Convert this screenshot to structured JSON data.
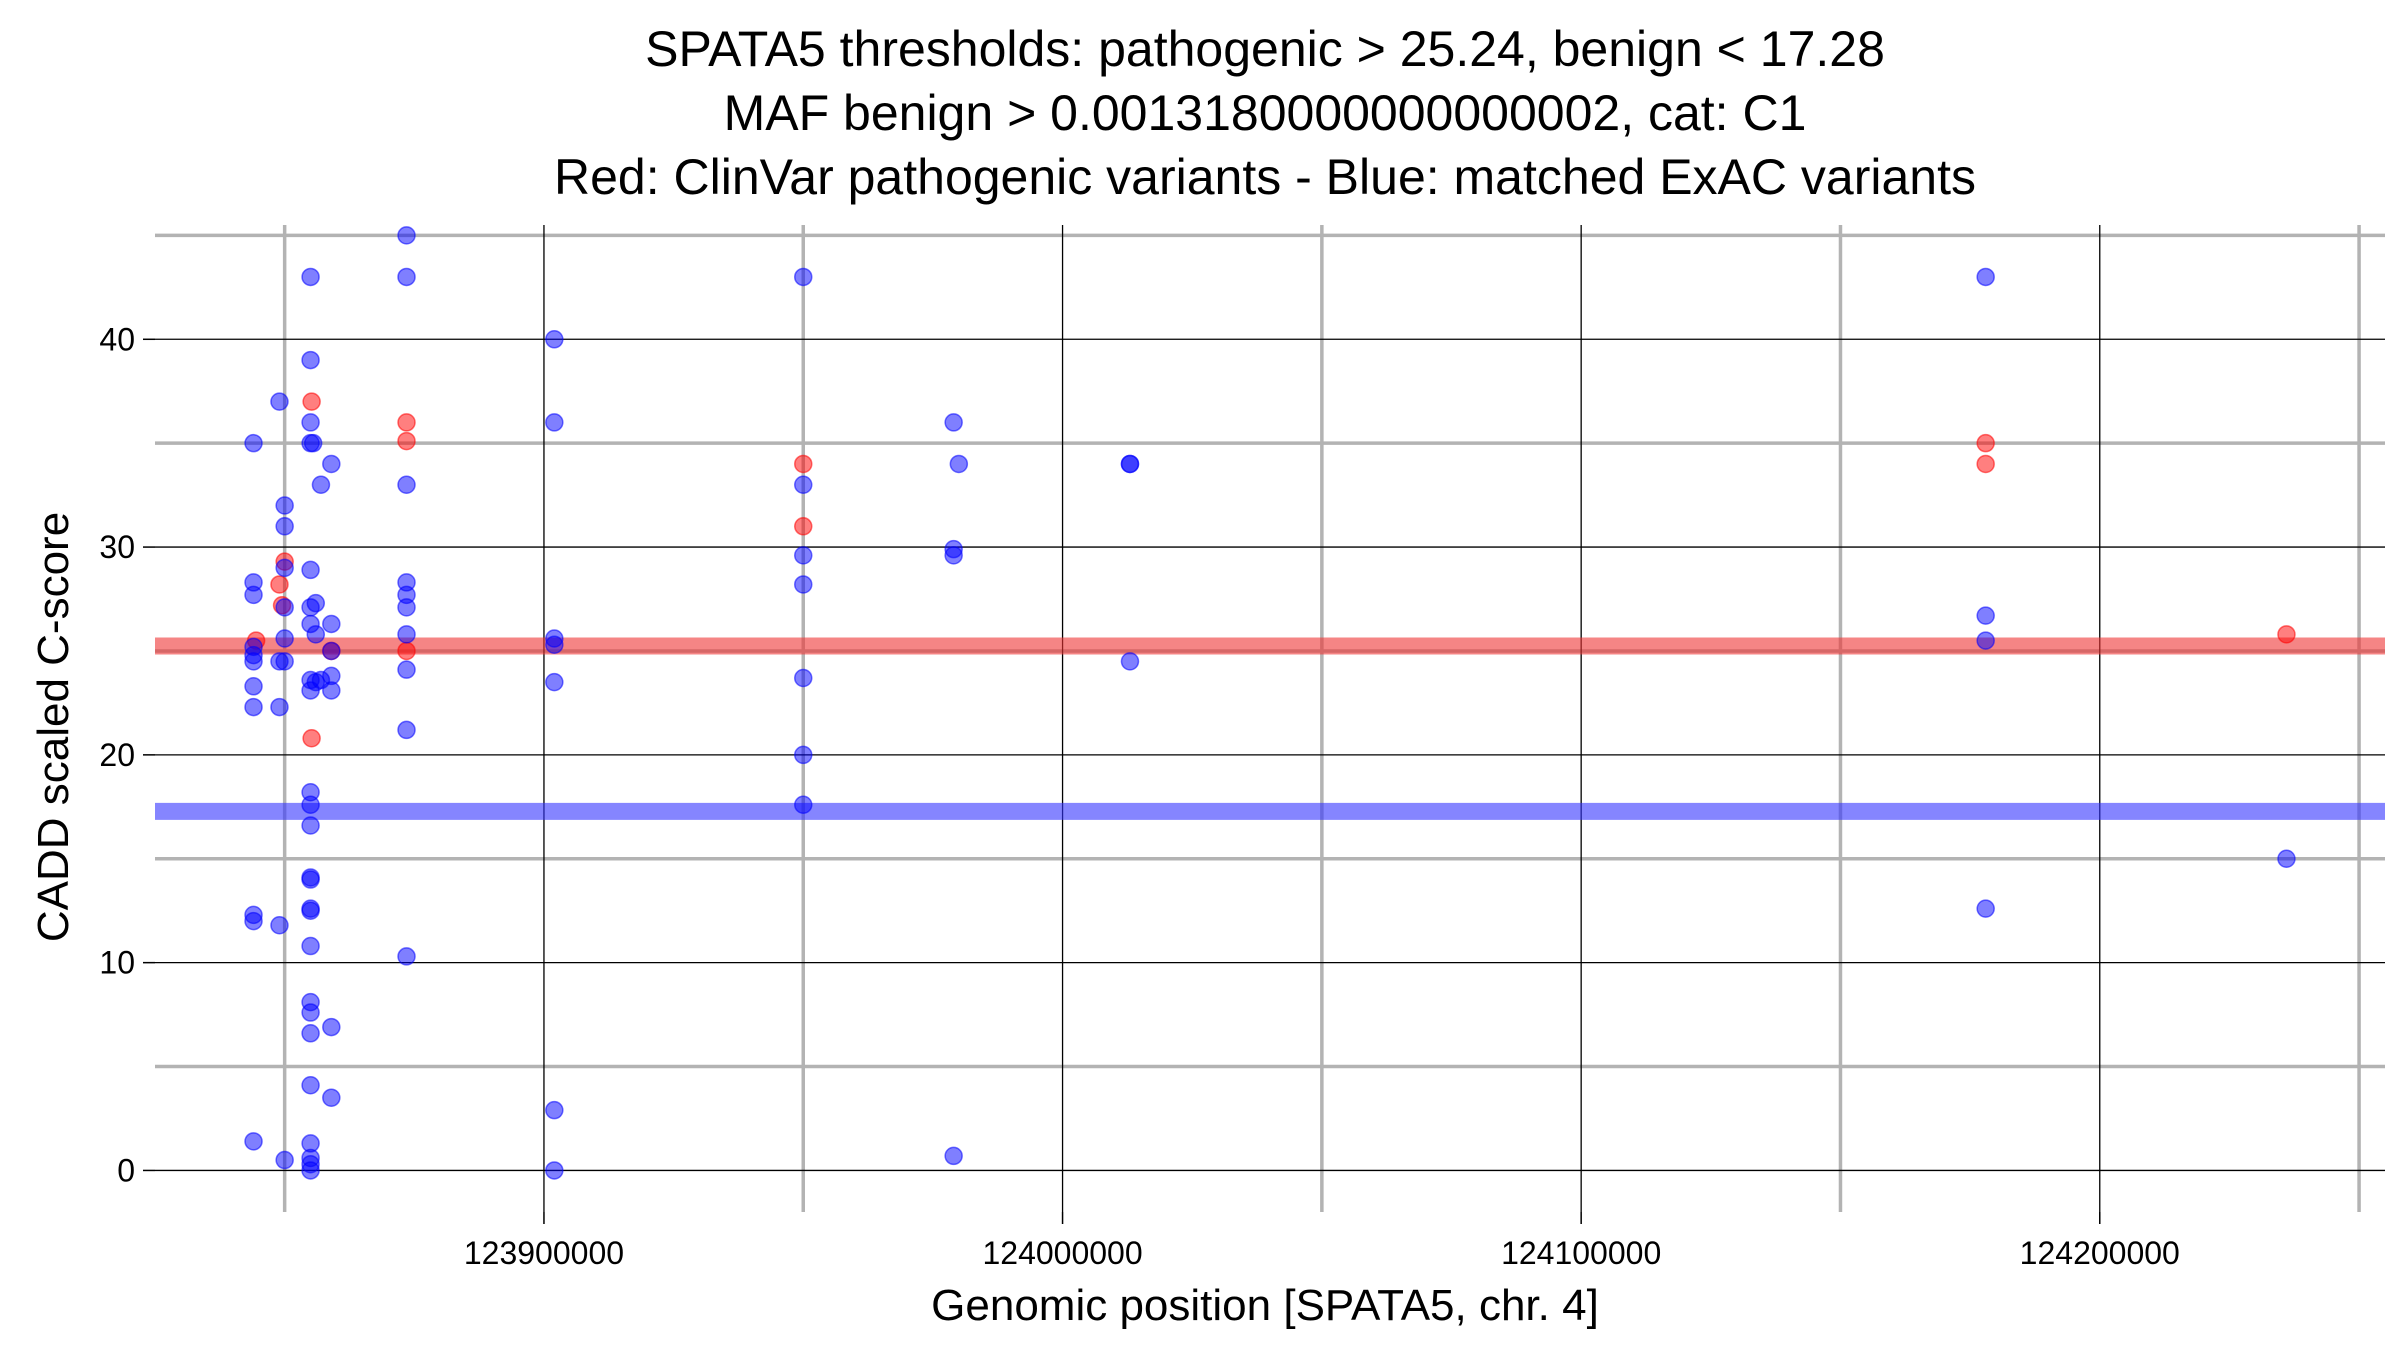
{
  "chart_data": {
    "type": "scatter",
    "title_lines": [
      "SPATA5 thresholds: pathogenic > 25.24, benign < 17.28",
      "MAF benign > 0.0013180000000000002, cat: C1",
      "Red: ClinVar pathogenic variants - Blue: matched ExAC variants"
    ],
    "xlabel": "Genomic position [SPATA5, chr. 4]",
    "ylabel": "CADD scaled C-score",
    "xlim": [
      123825000,
      124255000
    ],
    "ylim": [
      -2,
      45.5
    ],
    "x_ticks": [
      123900000,
      124000000,
      124100000,
      124200000
    ],
    "x_tick_labels": [
      "123900000",
      "124000000",
      "124100000",
      "124200000"
    ],
    "x_minor_gridlines": [
      123850000,
      123950000,
      124050000,
      124150000,
      124250000
    ],
    "y_ticks": [
      0,
      10,
      20,
      30,
      40
    ],
    "y_tick_labels": [
      "0",
      "10",
      "20",
      "30",
      "40"
    ],
    "y_minor_gridlines": [
      5,
      15,
      25,
      35,
      45
    ],
    "grid": true,
    "thresholds": [
      {
        "value": 25.24,
        "color": "#ee3333"
      },
      {
        "value": 17.28,
        "color": "#3333ff"
      }
    ],
    "series": [
      {
        "color": "#ff0000",
        "points": [
          [
            123844500,
            25.5
          ],
          [
            123849000,
            28.2
          ],
          [
            123849500,
            27.2
          ],
          [
            123850000,
            29.3
          ],
          [
            123855200,
            37.0
          ],
          [
            123855200,
            20.8
          ],
          [
            123859000,
            25.0
          ],
          [
            123873500,
            36.0
          ],
          [
            123873500,
            35.1
          ],
          [
            123873500,
            25.0
          ],
          [
            123950000,
            34.0
          ],
          [
            123950000,
            31.0
          ],
          [
            124178000,
            35.0
          ],
          [
            124178000,
            34.0
          ],
          [
            124236000,
            25.8
          ]
        ]
      },
      {
        "color": "#0000ff",
        "points": [
          [
            123844000,
            35.0
          ],
          [
            123844000,
            28.3
          ],
          [
            123844000,
            27.7
          ],
          [
            123844000,
            25.2
          ],
          [
            123844000,
            24.8
          ],
          [
            123844000,
            24.5
          ],
          [
            123844000,
            23.3
          ],
          [
            123844000,
            22.3
          ],
          [
            123844000,
            12.3
          ],
          [
            123844000,
            12.0
          ],
          [
            123844000,
            1.4
          ],
          [
            123849000,
            37.0
          ],
          [
            123849000,
            24.5
          ],
          [
            123849000,
            22.3
          ],
          [
            123849000,
            11.8
          ],
          [
            123850000,
            32.0
          ],
          [
            123850000,
            31.0
          ],
          [
            123850000,
            29.0
          ],
          [
            123850000,
            27.1
          ],
          [
            123850000,
            25.6
          ],
          [
            123850000,
            24.5
          ],
          [
            123850000,
            0.5
          ],
          [
            123855000,
            43.0
          ],
          [
            123855000,
            39.0
          ],
          [
            123855000,
            36.0
          ],
          [
            123855000,
            35.0
          ],
          [
            123855000,
            28.9
          ],
          [
            123855000,
            27.1
          ],
          [
            123855000,
            26.3
          ],
          [
            123855000,
            23.6
          ],
          [
            123855000,
            23.1
          ],
          [
            123855000,
            18.2
          ],
          [
            123855000,
            17.6
          ],
          [
            123855000,
            16.6
          ],
          [
            123855000,
            14.1
          ],
          [
            123855000,
            14.0
          ],
          [
            123855000,
            12.6
          ],
          [
            123855000,
            12.5
          ],
          [
            123855000,
            10.8
          ],
          [
            123855000,
            8.1
          ],
          [
            123855000,
            7.6
          ],
          [
            123855000,
            6.6
          ],
          [
            123855000,
            4.1
          ],
          [
            123855000,
            1.3
          ],
          [
            123855000,
            0.6
          ],
          [
            123855000,
            0.3
          ],
          [
            123855000,
            0.0
          ],
          [
            123855500,
            35.0
          ],
          [
            123856000,
            27.3
          ],
          [
            123856000,
            25.8
          ],
          [
            123856000,
            23.5
          ],
          [
            123857000,
            33.0
          ],
          [
            123857000,
            23.6
          ],
          [
            123859000,
            34.0
          ],
          [
            123859000,
            26.3
          ],
          [
            123859000,
            25.0
          ],
          [
            123859000,
            23.8
          ],
          [
            123859000,
            23.1
          ],
          [
            123859000,
            6.9
          ],
          [
            123859000,
            3.5
          ],
          [
            123873500,
            45.0
          ],
          [
            123873500,
            43.0
          ],
          [
            123873500,
            33.0
          ],
          [
            123873500,
            28.3
          ],
          [
            123873500,
            27.7
          ],
          [
            123873500,
            27.1
          ],
          [
            123873500,
            25.8
          ],
          [
            123873500,
            24.1
          ],
          [
            123873500,
            21.2
          ],
          [
            123873500,
            10.3
          ],
          [
            123902000,
            40.0
          ],
          [
            123902000,
            36.0
          ],
          [
            123902000,
            25.6
          ],
          [
            123902000,
            25.3
          ],
          [
            123902000,
            23.5
          ],
          [
            123902000,
            2.9
          ],
          [
            123902000,
            0.0
          ],
          [
            123950000,
            43.0
          ],
          [
            123950000,
            33.0
          ],
          [
            123950000,
            29.6
          ],
          [
            123950000,
            28.2
          ],
          [
            123950000,
            23.7
          ],
          [
            123950000,
            20.0
          ],
          [
            123950000,
            17.6
          ],
          [
            123979000,
            36.0
          ],
          [
            123979000,
            29.9
          ],
          [
            123979000,
            29.6
          ],
          [
            123979000,
            0.7
          ],
          [
            123980000,
            34.0
          ],
          [
            124013000,
            34.0
          ],
          [
            124013000,
            34.0
          ],
          [
            124013000,
            24.5
          ],
          [
            124178000,
            43.0
          ],
          [
            124178000,
            26.7
          ],
          [
            124178000,
            25.5
          ],
          [
            124178000,
            12.6
          ],
          [
            124236000,
            15.0
          ]
        ]
      }
    ]
  }
}
